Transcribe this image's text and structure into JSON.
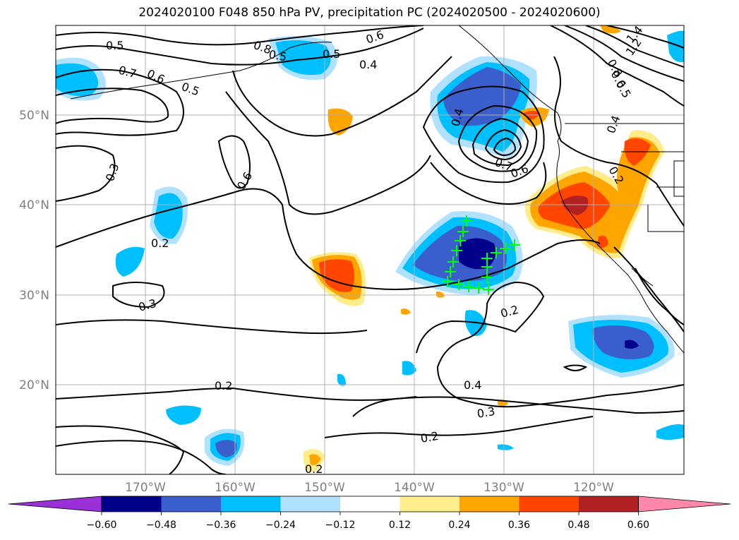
{
  "title": "2024020100 F048 850 hPa PV, precipitation PC (2024020500 - 2024020600)",
  "map": {
    "lat_labels": [
      "50°N",
      "40°N",
      "30°N",
      "20°N"
    ],
    "lon_labels": [
      "170°W",
      "160°W",
      "150°W",
      "140°W",
      "130°W",
      "120°W"
    ],
    "contour_labels": [
      "0.5",
      "0.7",
      "0.6",
      "0.5",
      "0.8",
      "0.5",
      "0.5",
      "0.6",
      "0.4",
      "0.4",
      "0.7",
      "0.6",
      "0.3",
      "0.6",
      "0.2",
      "0.3",
      "0.2",
      "0.2",
      "0.4",
      "0.3",
      "0.2",
      "0.2",
      "1.4",
      "1.2",
      "0.8",
      "0.6",
      "0.5",
      "0.4",
      "0.2"
    ],
    "colors": {
      "contour": "#000000",
      "grid": "#b0b0b0",
      "coast": "#000000",
      "marker": "#00ff00"
    }
  },
  "colorbar": {
    "ticks": [
      "−0.60",
      "−0.48",
      "−0.36",
      "−0.24",
      "−0.12",
      "0.12",
      "0.24",
      "0.36",
      "0.48",
      "0.60"
    ],
    "colors": [
      "#9b30d9",
      "#00008b",
      "#3a5fcd",
      "#00bfff",
      "#b0e2ff",
      "#ffffff",
      "#ffec8b",
      "#ffa500",
      "#ff4500",
      "#b22222",
      "#ff88aa"
    ]
  }
}
